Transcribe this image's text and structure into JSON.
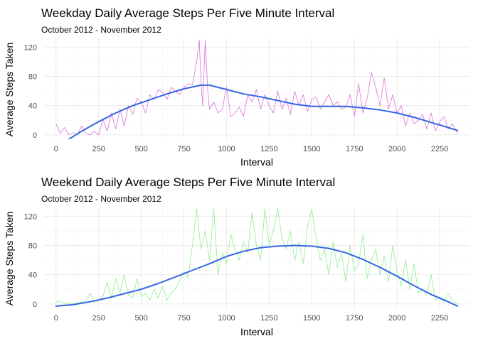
{
  "chart_data": [
    {
      "type": "line",
      "title": "Weekday Daily Average Steps Per Five Minute Interval",
      "subtitle": "October 2012 - November 2012",
      "xlabel": "Interval",
      "ylabel": "Average Steps Taken",
      "xlim": [
        -70,
        2425
      ],
      "ylim": [
        -6,
        132
      ],
      "xticks": [
        0,
        250,
        500,
        750,
        1000,
        1250,
        1500,
        1750,
        2000,
        2250
      ],
      "yticks": [
        0,
        40,
        80,
        120
      ],
      "grid": true,
      "series": [
        {
          "kind": "raw",
          "color": "#da70d6",
          "x": [
            0,
            25,
            50,
            75,
            100,
            125,
            150,
            175,
            200,
            225,
            250,
            275,
            300,
            325,
            350,
            375,
            400,
            425,
            450,
            475,
            500,
            525,
            550,
            575,
            600,
            625,
            650,
            675,
            700,
            725,
            750,
            775,
            800,
            825,
            840,
            850,
            860,
            875,
            890,
            900,
            925,
            950,
            975,
            1000,
            1025,
            1050,
            1075,
            1100,
            1125,
            1150,
            1175,
            1200,
            1225,
            1250,
            1275,
            1300,
            1325,
            1350,
            1375,
            1400,
            1425,
            1450,
            1475,
            1500,
            1525,
            1550,
            1575,
            1600,
            1625,
            1650,
            1675,
            1700,
            1725,
            1750,
            1775,
            1800,
            1825,
            1850,
            1875,
            1900,
            1925,
            1950,
            1975,
            2000,
            2025,
            2050,
            2075,
            2100,
            2125,
            2150,
            2175,
            2200,
            2225,
            2250,
            2275,
            2300,
            2325,
            2355
          ],
          "y": [
            15,
            2,
            10,
            0,
            3,
            0,
            12,
            2,
            0,
            5,
            0,
            22,
            5,
            30,
            8,
            35,
            12,
            40,
            28,
            50,
            45,
            30,
            55,
            48,
            62,
            58,
            48,
            65,
            60,
            55,
            65,
            70,
            68,
            100,
            130,
            75,
            40,
            130,
            60,
            35,
            45,
            30,
            35,
            65,
            25,
            30,
            38,
            25,
            55,
            45,
            62,
            35,
            55,
            40,
            30,
            60,
            35,
            50,
            28,
            60,
            40,
            55,
            32,
            48,
            52,
            35,
            45,
            55,
            40,
            45,
            35,
            38,
            55,
            25,
            70,
            30,
            50,
            85,
            65,
            40,
            78,
            35,
            55,
            30,
            40,
            12,
            30,
            15,
            20,
            28,
            8,
            30,
            5,
            18,
            25,
            8,
            15,
            2
          ]
        },
        {
          "kind": "smooth",
          "color": "#3366e6",
          "x": [
            75,
            150,
            250,
            350,
            450,
            550,
            650,
            750,
            850,
            900,
            1000,
            1100,
            1200,
            1300,
            1400,
            1500,
            1600,
            1700,
            1800,
            1900,
            2000,
            2100,
            2200,
            2300,
            2355
          ],
          "y": [
            -6,
            5,
            18,
            30,
            40,
            48,
            56,
            63,
            68,
            68,
            62,
            56,
            52,
            47,
            42,
            39,
            39,
            39,
            37,
            34,
            30,
            24,
            17,
            10,
            6
          ]
        }
      ]
    },
    {
      "type": "line",
      "title": "Weekend Daily Average Steps Per Five Minute Interval",
      "subtitle": "October 2012 - November 2012",
      "xlabel": "Interval",
      "ylabel": "Average Steps Taken",
      "xlim": [
        -70,
        2425
      ],
      "ylim": [
        -6,
        132
      ],
      "xticks": [
        0,
        250,
        500,
        750,
        1000,
        1250,
        1500,
        1750,
        2000,
        2250
      ],
      "yticks": [
        0,
        40,
        80,
        120
      ],
      "grid": true,
      "series": [
        {
          "kind": "raw",
          "color": "#90ee90",
          "x": [
            0,
            25,
            50,
            75,
            100,
            125,
            150,
            175,
            200,
            225,
            250,
            275,
            300,
            325,
            350,
            375,
            400,
            425,
            450,
            475,
            500,
            525,
            550,
            575,
            600,
            625,
            650,
            675,
            700,
            725,
            750,
            775,
            800,
            825,
            850,
            875,
            900,
            925,
            950,
            975,
            1000,
            1025,
            1050,
            1075,
            1100,
            1125,
            1150,
            1175,
            1200,
            1225,
            1250,
            1275,
            1300,
            1325,
            1350,
            1375,
            1400,
            1425,
            1450,
            1475,
            1500,
            1525,
            1550,
            1575,
            1600,
            1625,
            1650,
            1675,
            1700,
            1725,
            1750,
            1775,
            1800,
            1825,
            1850,
            1875,
            1900,
            1925,
            1950,
            1975,
            2000,
            2025,
            2050,
            2075,
            2100,
            2125,
            2150,
            2175,
            2200,
            2225,
            2250,
            2275,
            2300,
            2325,
            2355
          ],
          "y": [
            3,
            4,
            0,
            2,
            0,
            1,
            3,
            5,
            15,
            2,
            5,
            10,
            30,
            8,
            35,
            15,
            40,
            12,
            8,
            35,
            10,
            15,
            5,
            20,
            8,
            25,
            5,
            15,
            20,
            32,
            45,
            35,
            80,
            130,
            75,
            100,
            60,
            130,
            40,
            70,
            55,
            95,
            75,
            60,
            85,
            70,
            125,
            80,
            60,
            130,
            80,
            100,
            130,
            90,
            75,
            100,
            60,
            85,
            55,
            105,
            130,
            90,
            60,
            75,
            40,
            85,
            50,
            70,
            30,
            80,
            45,
            55,
            95,
            35,
            60,
            75,
            40,
            65,
            30,
            80,
            45,
            25,
            60,
            20,
            55,
            15,
            20,
            12,
            40,
            5,
            10,
            2,
            15,
            5,
            0
          ]
        },
        {
          "kind": "smooth",
          "color": "#3366e6",
          "x": [
            0,
            100,
            200,
            300,
            400,
            500,
            600,
            700,
            800,
            900,
            1000,
            1100,
            1200,
            1300,
            1400,
            1500,
            1600,
            1700,
            1800,
            1900,
            2000,
            2100,
            2200,
            2300,
            2355
          ],
          "y": [
            -3,
            -1,
            3,
            8,
            14,
            20,
            28,
            37,
            46,
            55,
            65,
            72,
            77,
            79,
            80,
            79,
            76,
            70,
            61,
            50,
            38,
            25,
            13,
            3,
            -3
          ]
        }
      ]
    }
  ]
}
